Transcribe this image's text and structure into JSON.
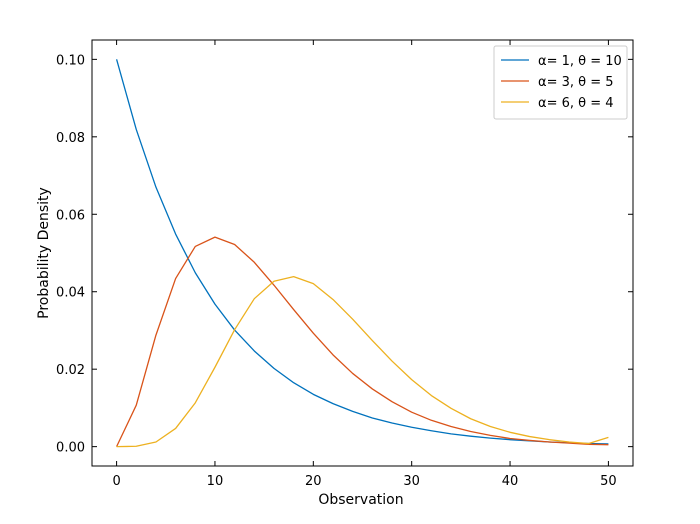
{
  "chart_data": {
    "type": "line",
    "xlabel": "Observation",
    "ylabel": "Probability Density",
    "xlim": [
      -2.5,
      52.5
    ],
    "ylim": [
      -0.005,
      0.105
    ],
    "xticks": [
      0,
      10,
      20,
      30,
      40,
      50
    ],
    "xtick_labels": [
      "0",
      "10",
      "20",
      "30",
      "40",
      "50"
    ],
    "yticks": [
      0.0,
      0.02,
      0.04,
      0.06,
      0.08,
      0.1
    ],
    "ytick_labels": [
      "0.00",
      "0.02",
      "0.04",
      "0.06",
      "0.08",
      "0.10"
    ],
    "grid": false,
    "legend_position": "top-right",
    "x": [
      0,
      2,
      4,
      6,
      8,
      10,
      12,
      14,
      16,
      18,
      20,
      22,
      24,
      26,
      28,
      30,
      32,
      34,
      36,
      38,
      40,
      42,
      44,
      46,
      48,
      50
    ],
    "series": [
      {
        "name": "α= 1, θ = 10",
        "color": "#0072bd",
        "values": [
          0.1,
          0.0819,
          0.067,
          0.0549,
          0.0449,
          0.0368,
          0.0301,
          0.0247,
          0.0202,
          0.0165,
          0.0135,
          0.0111,
          0.0091,
          0.0074,
          0.0061,
          0.005,
          0.0041,
          0.0033,
          0.0027,
          0.0022,
          0.0018,
          0.0015,
          0.0012,
          0.001,
          0.0008,
          0.0007
        ]
      },
      {
        "name": "α= 3, θ = 5",
        "color": "#d95319",
        "values": [
          0.0,
          0.0107,
          0.0288,
          0.0434,
          0.0517,
          0.0541,
          0.0522,
          0.0476,
          0.0417,
          0.0354,
          0.0293,
          0.0237,
          0.0189,
          0.0149,
          0.0116,
          0.0089,
          0.0068,
          0.0052,
          0.0039,
          0.0029,
          0.0021,
          0.0016,
          0.0012,
          0.0009,
          0.0006,
          0.0005
        ]
      },
      {
        "name": "α= 6, θ = 4",
        "color": "#edb120",
        "values": [
          0.0,
          0.0001,
          0.0012,
          0.0047,
          0.0113,
          0.0205,
          0.0302,
          0.0382,
          0.0427,
          0.0439,
          0.0421,
          0.038,
          0.0329,
          0.0274,
          0.0221,
          0.0173,
          0.0132,
          0.0099,
          0.0072,
          0.0052,
          0.0037,
          0.0026,
          0.0018,
          0.0012,
          0.0008,
          0.0024
        ]
      }
    ]
  }
}
